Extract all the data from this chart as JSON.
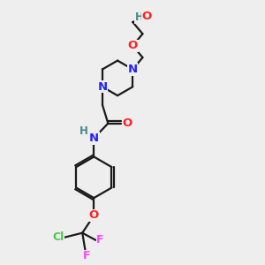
{
  "bg_color": "#eeeeee",
  "bond_color": "#1a1a1a",
  "N_color": "#2222ff",
  "O_color": "#ff2020",
  "F_color": "#ff44ff",
  "Cl_color": "#44cc44",
  "H_color": "#448888",
  "bond_width": 1.6,
  "font_size": 9.5,
  "fig_size": [
    3.0,
    3.0
  ],
  "dpi": 100,
  "xlim": [
    0,
    10
  ],
  "ylim": [
    0,
    10
  ]
}
